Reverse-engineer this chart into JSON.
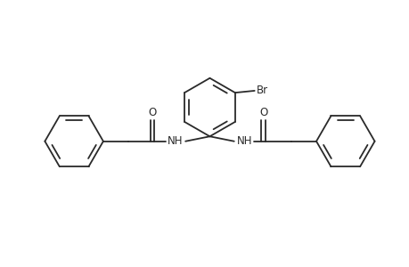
{
  "background_color": "#ffffff",
  "line_color": "#2a2a2a",
  "line_width": 1.3,
  "figsize": [
    4.6,
    3.0
  ],
  "dpi": 100,
  "br_label": "Br",
  "o_label1": "O",
  "o_label2": "O",
  "nh_label1": "NH",
  "nh_label2": "NH",
  "font_size": 8.5
}
